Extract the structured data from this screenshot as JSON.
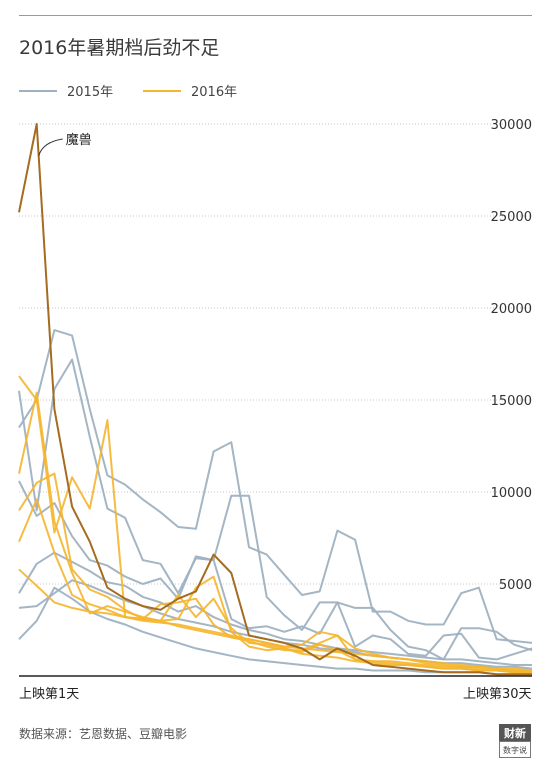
{
  "title": "2016年暑期档后劲不足",
  "source": "数据来源：艺恩数据、豆瓣电影",
  "logo": {
    "line1": "财新",
    "line2": "数字说"
  },
  "chart_data": {
    "type": "line",
    "title": "2016年暑期档后劲不足",
    "xlabel": "",
    "ylabel": "",
    "x_start_label": "上映第1天",
    "x_end_label": "上映第30天",
    "xlim": [
      1,
      30
    ],
    "ylim": [
      0,
      30000
    ],
    "yticks": [
      5000,
      10000,
      15000,
      20000,
      25000,
      30000
    ],
    "grid": true,
    "legend": "top-left",
    "legend_entries": [
      {
        "label": "2015年",
        "color": "#9fb1c1"
      },
      {
        "label": "2016年",
        "color": "#f5b52e"
      }
    ],
    "annotation": {
      "text": "魔兽",
      "x": 2,
      "y": 30000
    },
    "series": [
      {
        "group": "2015年",
        "color": "#9fb1c1",
        "values": [
          13500,
          15000,
          18800,
          18500,
          14500,
          10900,
          10400,
          9600,
          8900,
          8100,
          8000,
          12200,
          12700,
          7000,
          6600,
          5500,
          4400,
          4600,
          7900,
          7400,
          3500,
          3500,
          3000,
          2800,
          2800,
          4500,
          4800,
          2000,
          1900,
          1800
        ]
      },
      {
        "group": "2015年",
        "color": "#9fb1c1",
        "values": [
          15500,
          9000,
          15600,
          17200,
          13000,
          9100,
          8600,
          6300,
          6100,
          4500,
          6400,
          6300,
          9800,
          9800,
          4300,
          3300,
          2500,
          4000,
          4000,
          1600,
          2200,
          2000,
          1200,
          1100,
          2200,
          2300,
          1000,
          900,
          1200,
          1500
        ]
      },
      {
        "group": "2015年",
        "color": "#9fb1c1",
        "values": [
          10600,
          8700,
          9400,
          7600,
          6300,
          6000,
          5400,
          5000,
          5300,
          4200,
          6500,
          6300,
          3100,
          2600,
          2700,
          2400,
          2700,
          2300,
          4000,
          3700,
          3700,
          2500,
          1600,
          1400,
          900,
          2600,
          2600,
          2400,
          1700,
          1400
        ]
      },
      {
        "group": "2015年",
        "color": "#9fb1c1",
        "values": [
          4500,
          6100,
          6700,
          6200,
          5700,
          5100,
          4900,
          4300,
          4000,
          3500,
          3800,
          3200,
          2800,
          2500,
          2300,
          2000,
          1900,
          1700,
          1500,
          1400,
          1300,
          1200,
          1100,
          1000,
          900,
          900,
          800,
          700,
          600,
          600
        ]
      },
      {
        "group": "2015年",
        "color": "#9fb1c1",
        "values": [
          3700,
          3800,
          4500,
          5200,
          4900,
          4500,
          4100,
          3800,
          3400,
          3100,
          2900,
          2700,
          2400,
          2200,
          2000,
          1800,
          1700,
          1500,
          1400,
          1300,
          1100,
          1000,
          900,
          800,
          700,
          700,
          600,
          500,
          500,
          400
        ]
      },
      {
        "group": "2015年",
        "color": "#9fb1c1",
        "values": [
          2000,
          3000,
          4800,
          4200,
          3500,
          3100,
          2800,
          2400,
          2100,
          1800,
          1500,
          1300,
          1100,
          900,
          800,
          700,
          600,
          500,
          400,
          400,
          300,
          300,
          300,
          200,
          200,
          200,
          200,
          100,
          100,
          100
        ]
      },
      {
        "group": "2016年",
        "color": "#f5b52e",
        "values": [
          16300,
          15000,
          7800,
          10800,
          9100,
          13900,
          3200,
          3100,
          3000,
          4400,
          3200,
          4200,
          2600,
          1800,
          1700,
          1500,
          1300,
          1700,
          1400,
          900,
          800,
          800,
          700,
          600,
          500,
          500,
          400,
          400,
          300,
          300
        ]
      },
      {
        "group": "2016年",
        "color": "#f5b52e",
        "values": [
          11000,
          15400,
          8400,
          5600,
          3400,
          3800,
          3500,
          3200,
          3000,
          3100,
          4800,
          5400,
          2400,
          1600,
          1400,
          1500,
          1200,
          1100,
          1000,
          800,
          700,
          600,
          600,
          500,
          400,
          400,
          300,
          300,
          200,
          200
        ]
      },
      {
        "group": "2016年",
        "color": "#f5b52e",
        "values": [
          9000,
          10500,
          11000,
          5800,
          4700,
          4300,
          3600,
          3100,
          3900,
          4000,
          4200,
          2800,
          2100,
          1900,
          1600,
          1400,
          1400,
          1800,
          2200,
          900,
          800,
          700,
          600,
          500,
          400,
          400,
          300,
          300,
          200,
          200
        ]
      },
      {
        "group": "2016年",
        "color": "#f5b52e",
        "values": [
          7300,
          9600,
          6700,
          4400,
          3900,
          3600,
          3200,
          3000,
          2900,
          2800,
          2600,
          2400,
          2200,
          2000,
          1800,
          1600,
          1700,
          2400,
          2200,
          1500,
          1200,
          1000,
          900,
          700,
          600,
          500,
          500,
          400,
          300,
          300
        ]
      },
      {
        "group": "2016年",
        "color": "#f5b52e",
        "values": [
          5800,
          4900,
          4000,
          3700,
          3500,
          3400,
          3200,
          3100,
          3000,
          2700,
          2500,
          2300,
          2100,
          2000,
          1800,
          1600,
          1500,
          1400,
          1300,
          1200,
          1100,
          1000,
          900,
          800,
          700,
          600,
          500,
          400,
          400,
          300
        ]
      }
    ],
    "highlight_series": {
      "name": "魔兽",
      "group": "2016年",
      "color": "#a56b1e",
      "values": [
        25200,
        30000,
        14500,
        9200,
        7300,
        4800,
        4200,
        3800,
        3600,
        4200,
        4600,
        6600,
        5600,
        2200,
        2000,
        1800,
        1500,
        900,
        1500,
        1100,
        600,
        500,
        400,
        300,
        200,
        200,
        200,
        100,
        100,
        100
      ]
    }
  }
}
